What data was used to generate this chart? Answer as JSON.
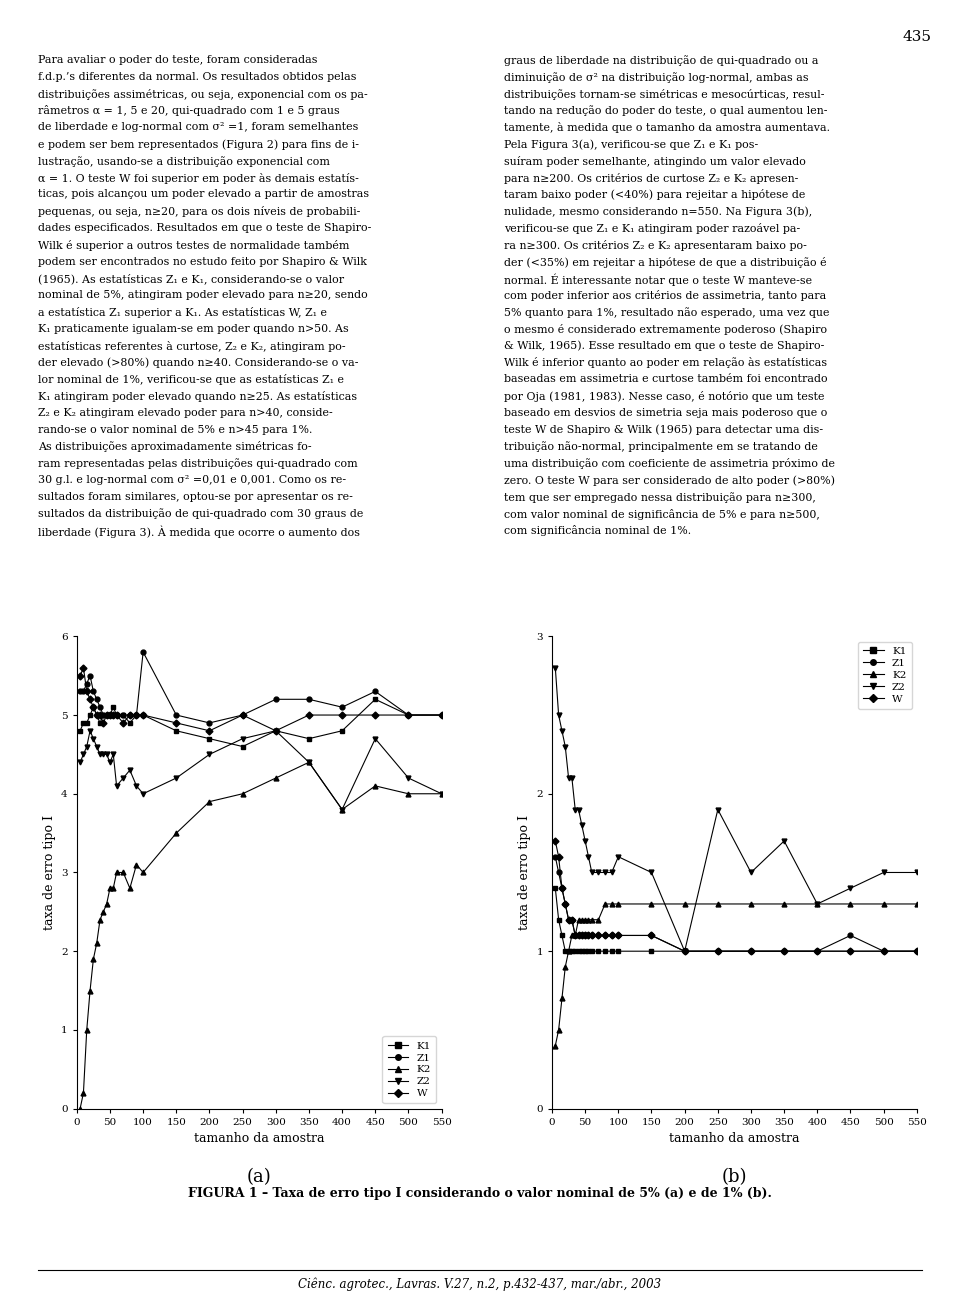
{
  "page_number": "435",
  "text_col1": [
    "Para avaliar o poder do teste, foram consideradas",
    "f.d.p.’s diferentes da normal. Os resultados obtidos pelas",
    "distribuições assimétricas, ou seja, exponencial com os pa-",
    "râmetros α = 1, 5 e 20, qui-quadrado com 1 e 5 graus",
    "de liberdade e log-normal com σ² =1, foram semelhantes",
    "e podem ser bem representados (Figura 2) para fins de i-",
    "lustração, usando-se a distribuição exponencial com",
    "α = 1. O teste W foi superior em poder às demais estatís-",
    "ticas, pois alcançou um poder elevado a partir de amostras",
    "pequenas, ou seja, n≥20, para os dois níveis de probabili-",
    "dades especificados. Resultados em que o teste de Shapiro-",
    "Wilk é superior a outros testes de normalidade também",
    "podem ser encontrados no estudo feito por Shapiro & Wilk",
    "(1965). As estatísticas Z₁ e K₁, considerando-se o valor",
    "nominal de 5%, atingiram poder elevado para n≥20, sendo",
    "a estatística Z₁ superior a K₁. As estatísticas W, Z₁ e",
    "K₁ praticamente igualam-se em poder quando n>50. As",
    "estatísticas referentes à curtose, Z₂ e K₂, atingiram po-",
    "der elevado (>80%) quando n≥40. Considerando-se o va-",
    "lor nominal de 1%, verificou-se que as estatísticas Z₁ e",
    "K₁ atingiram poder elevado quando n≥25. As estatísticas",
    "Z₂ e K₂ atingiram elevado poder para n>40, conside-",
    "rando-se o valor nominal de 5% e n>45 para 1%.",
    "As distribuições aproximadamente simétricas fo-",
    "ram representadas pelas distribuições qui-quadrado com",
    "30 g.l. e log-normal com σ² =0,01 e 0,001. Como os re-",
    "sultados foram similares, optou-se por apresentar os re-",
    "sultados da distribuição de qui-quadrado com 30 graus de",
    "liberdade (Figura 3). À medida que ocorre o aumento dos"
  ],
  "text_col2": [
    "graus de liberdade na distribuição de qui-quadrado ou a",
    "diminuição de σ² na distribuição log-normal, ambas as",
    "distribuições tornam-se simétricas e mesocúrticas, resul-",
    "tando na redução do poder do teste, o qual aumentou len-",
    "tamente, à medida que o tamanho da amostra aumentava.",
    "Pela Figura 3(a), verificou-se que Z₁ e K₁ pos-",
    "suíram poder semelhante, atingindo um valor elevado",
    "para n≥200. Os critérios de curtose Z₂ e K₂ apresen-",
    "taram baixo poder (<40%) para rejeitar a hipótese de",
    "nulidade, mesmo considerando n=550. Na Figura 3(b),",
    "verificou-se que Z₁ e K₁ atingiram poder razoável pa-",
    "ra n≥300. Os critérios Z₂ e K₂ apresentaram baixo po-",
    "der (<35%) em rejeitar a hipótese de que a distribuição é",
    "normal. É interessante notar que o teste W manteve-se",
    "com poder inferior aos critérios de assimetria, tanto para",
    "5% quanto para 1%, resultado não esperado, uma vez que",
    "o mesmo é considerado extremamente poderoso (Shapiro",
    "& Wilk, 1965). Esse resultado em que o teste de Shapiro-",
    "Wilk é inferior quanto ao poder em relação às estatísticas",
    "baseadas em assimetria e curtose também foi encontrado",
    "por Oja (1981, 1983). Nesse caso, é notório que um teste",
    "baseado em desvios de simetria seja mais poderoso que o",
    "teste W de Shapiro & Wilk (1965) para detectar uma dis-",
    "tribuição não-normal, principalmente em se tratando de",
    "uma distribuição com coeficiente de assimetria próximo de",
    "zero. O teste W para ser considerado de alto poder (>80%)",
    "tem que ser empregado nessa distribuição para n≥300,",
    "com valor nominal de significância de 5% e para n≥500,",
    "com significância nominal de 1%."
  ],
  "figure_caption": "FIGURA 1 – Taxa de erro tipo I considerando o valor nominal de 5% (a) e de 1% (b).",
  "footer": "Ciênc. agrotec., Lavras. V.27, n.2, p.432-437, mar./abr., 2003",
  "x_ticks": [
    0,
    50,
    100,
    150,
    200,
    250,
    300,
    350,
    400,
    450,
    500,
    550
  ],
  "xlabel": "tamanho da amostra",
  "ylabel": "taxa de erro tipo I",
  "plot_a_ylim": [
    0,
    6
  ],
  "plot_a_yticks": [
    0,
    1,
    2,
    3,
    4,
    5,
    6
  ],
  "plot_b_ylim": [
    0,
    3
  ],
  "plot_b_yticks": [
    0,
    1,
    2,
    3
  ],
  "legend_labels": [
    "K1",
    "Z1",
    "K2",
    "Z2",
    "W"
  ],
  "x_values": [
    5,
    10,
    15,
    20,
    25,
    30,
    35,
    40,
    45,
    50,
    55,
    60,
    70,
    80,
    90,
    100,
    150,
    200,
    250,
    300,
    350,
    400,
    450,
    500,
    550
  ],
  "K1_a": [
    4.8,
    4.9,
    4.9,
    5.0,
    5.1,
    5.0,
    4.9,
    5.0,
    5.0,
    5.0,
    5.1,
    5.0,
    5.0,
    4.9,
    5.0,
    5.0,
    4.8,
    4.7,
    4.6,
    4.8,
    4.7,
    4.8,
    5.2,
    5.0,
    5.0
  ],
  "Z1_a": [
    5.3,
    5.3,
    5.4,
    5.5,
    5.3,
    5.2,
    5.1,
    5.0,
    5.0,
    5.0,
    5.0,
    5.0,
    5.0,
    5.0,
    5.0,
    5.8,
    5.0,
    4.9,
    5.0,
    5.2,
    5.2,
    5.1,
    5.3,
    5.0,
    5.0
  ],
  "K2_a": [
    0.0,
    0.2,
    1.0,
    1.5,
    1.9,
    2.1,
    2.4,
    2.5,
    2.6,
    2.8,
    2.8,
    3.0,
    3.0,
    2.8,
    3.1,
    3.0,
    3.5,
    3.9,
    4.0,
    4.2,
    4.4,
    3.8,
    4.1,
    4.0,
    4.0
  ],
  "Z2_a": [
    4.4,
    4.5,
    4.6,
    4.8,
    4.7,
    4.6,
    4.5,
    4.5,
    4.5,
    4.4,
    4.5,
    4.1,
    4.2,
    4.3,
    4.1,
    4.0,
    4.2,
    4.5,
    4.7,
    4.8,
    4.4,
    3.8,
    4.7,
    4.2,
    4.0
  ],
  "W_a": [
    5.5,
    5.6,
    5.3,
    5.2,
    5.1,
    5.0,
    5.0,
    4.9,
    5.0,
    5.0,
    5.0,
    5.0,
    4.9,
    5.0,
    5.0,
    5.0,
    4.9,
    4.8,
    5.0,
    4.8,
    5.0,
    5.0,
    5.0,
    5.0,
    5.0
  ],
  "K1_b": [
    1.4,
    1.2,
    1.1,
    1.0,
    1.0,
    1.0,
    1.0,
    1.0,
    1.0,
    1.0,
    1.0,
    1.0,
    1.0,
    1.0,
    1.0,
    1.0,
    1.0,
    1.0,
    1.0,
    1.0,
    1.0,
    1.0,
    1.0,
    1.0,
    1.0
  ],
  "Z1_b": [
    1.6,
    1.5,
    1.4,
    1.3,
    1.2,
    1.2,
    1.1,
    1.1,
    1.1,
    1.1,
    1.1,
    1.1,
    1.1,
    1.1,
    1.1,
    1.1,
    1.1,
    1.0,
    1.0,
    1.0,
    1.0,
    1.0,
    1.1,
    1.0,
    1.0
  ],
  "K2_b": [
    0.4,
    0.5,
    0.7,
    0.9,
    1.0,
    1.1,
    1.1,
    1.2,
    1.2,
    1.2,
    1.2,
    1.2,
    1.2,
    1.3,
    1.3,
    1.3,
    1.3,
    1.3,
    1.3,
    1.3,
    1.3,
    1.3,
    1.3,
    1.3,
    1.3
  ],
  "Z2_b": [
    2.8,
    2.5,
    2.4,
    2.3,
    2.1,
    2.1,
    1.9,
    1.9,
    1.8,
    1.7,
    1.6,
    1.5,
    1.5,
    1.5,
    1.5,
    1.6,
    1.5,
    1.0,
    1.9,
    1.5,
    1.7,
    1.3,
    1.4,
    1.5,
    1.5
  ],
  "W_b": [
    1.7,
    1.6,
    1.4,
    1.3,
    1.2,
    1.2,
    1.1,
    1.1,
    1.1,
    1.1,
    1.1,
    1.1,
    1.1,
    1.1,
    1.1,
    1.1,
    1.1,
    1.0,
    1.0,
    1.0,
    1.0,
    1.0,
    1.0,
    1.0,
    1.0
  ]
}
